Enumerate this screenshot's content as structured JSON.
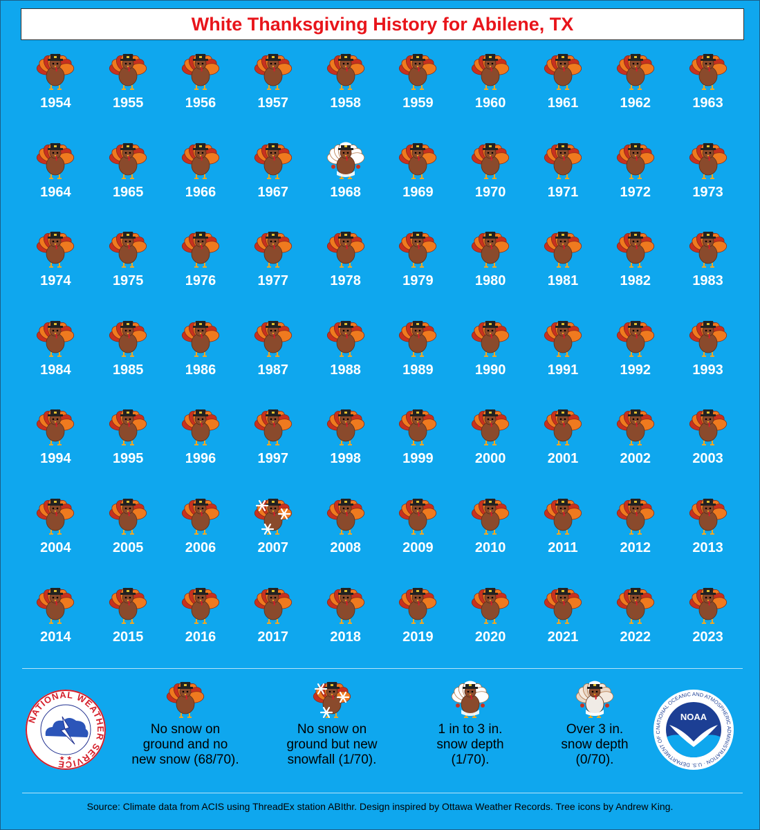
{
  "title": "White Thanksgiving History for Abilene, TX",
  "years": [
    {
      "year": "1954",
      "category": "none"
    },
    {
      "year": "1955",
      "category": "none"
    },
    {
      "year": "1956",
      "category": "none"
    },
    {
      "year": "1957",
      "category": "none"
    },
    {
      "year": "1958",
      "category": "none"
    },
    {
      "year": "1959",
      "category": "none"
    },
    {
      "year": "1960",
      "category": "none"
    },
    {
      "year": "1961",
      "category": "none"
    },
    {
      "year": "1962",
      "category": "none"
    },
    {
      "year": "1963",
      "category": "none"
    },
    {
      "year": "1964",
      "category": "none"
    },
    {
      "year": "1965",
      "category": "none"
    },
    {
      "year": "1966",
      "category": "none"
    },
    {
      "year": "1967",
      "category": "none"
    },
    {
      "year": "1968",
      "category": "depth_1_3"
    },
    {
      "year": "1969",
      "category": "none"
    },
    {
      "year": "1970",
      "category": "none"
    },
    {
      "year": "1971",
      "category": "none"
    },
    {
      "year": "1972",
      "category": "none"
    },
    {
      "year": "1973",
      "category": "none"
    },
    {
      "year": "1974",
      "category": "none"
    },
    {
      "year": "1975",
      "category": "none"
    },
    {
      "year": "1976",
      "category": "none"
    },
    {
      "year": "1977",
      "category": "none"
    },
    {
      "year": "1978",
      "category": "none"
    },
    {
      "year": "1979",
      "category": "none"
    },
    {
      "year": "1980",
      "category": "none"
    },
    {
      "year": "1981",
      "category": "none"
    },
    {
      "year": "1982",
      "category": "none"
    },
    {
      "year": "1983",
      "category": "none"
    },
    {
      "year": "1984",
      "category": "none"
    },
    {
      "year": "1985",
      "category": "none"
    },
    {
      "year": "1986",
      "category": "none"
    },
    {
      "year": "1987",
      "category": "none"
    },
    {
      "year": "1988",
      "category": "none"
    },
    {
      "year": "1989",
      "category": "none"
    },
    {
      "year": "1990",
      "category": "none"
    },
    {
      "year": "1991",
      "category": "none"
    },
    {
      "year": "1992",
      "category": "none"
    },
    {
      "year": "1993",
      "category": "none"
    },
    {
      "year": "1994",
      "category": "none"
    },
    {
      "year": "1995",
      "category": "none"
    },
    {
      "year": "1996",
      "category": "none"
    },
    {
      "year": "1997",
      "category": "none"
    },
    {
      "year": "1998",
      "category": "none"
    },
    {
      "year": "1999",
      "category": "none"
    },
    {
      "year": "2000",
      "category": "none"
    },
    {
      "year": "2001",
      "category": "none"
    },
    {
      "year": "2002",
      "category": "none"
    },
    {
      "year": "2003",
      "category": "none"
    },
    {
      "year": "2004",
      "category": "none"
    },
    {
      "year": "2005",
      "category": "none"
    },
    {
      "year": "2006",
      "category": "none"
    },
    {
      "year": "2007",
      "category": "new_snow"
    },
    {
      "year": "2008",
      "category": "none"
    },
    {
      "year": "2009",
      "category": "none"
    },
    {
      "year": "2010",
      "category": "none"
    },
    {
      "year": "2011",
      "category": "none"
    },
    {
      "year": "2012",
      "category": "none"
    },
    {
      "year": "2013",
      "category": "none"
    },
    {
      "year": "2014",
      "category": "none"
    },
    {
      "year": "2015",
      "category": "none"
    },
    {
      "year": "2016",
      "category": "none"
    },
    {
      "year": "2017",
      "category": "none"
    },
    {
      "year": "2018",
      "category": "none"
    },
    {
      "year": "2019",
      "category": "none"
    },
    {
      "year": "2020",
      "category": "none"
    },
    {
      "year": "2021",
      "category": "none"
    },
    {
      "year": "2022",
      "category": "none"
    },
    {
      "year": "2023",
      "category": "none"
    }
  ],
  "legend": [
    {
      "category": "none",
      "text": "No snow on\nground and no\nnew snow (68/70)."
    },
    {
      "category": "new_snow",
      "text": "No snow on\nground but new\nsnowfall (1/70)."
    },
    {
      "category": "depth_1_3",
      "text": "1 in to 3 in.\nsnow depth\n(1/70)."
    },
    {
      "category": "depth_over_3",
      "text": "Over 3 in.\nsnow depth\n(0/70)."
    }
  ],
  "logos": {
    "nws_text": "NATIONAL WEATHER SERVICE",
    "noaa_center": "NOAA",
    "noaa_ring": "NATIONAL OCEANIC AND ATMOSPHERIC ADMINISTRATION · U.S. DEPARTMENT OF COMMERCE"
  },
  "source": "Source: Climate data from ACIS using ThreadEx station ABIthr. Design inspired by Ottawa Weather Records. Tree icons by Andrew King.",
  "colors": {
    "background": "#0fa7ee",
    "title_text": "#e8151b",
    "turkey_body": "#8a4a2c",
    "feather_red": "#c8311f",
    "feather_orange": "#ef7a1f",
    "snow": "#ffffff"
  }
}
